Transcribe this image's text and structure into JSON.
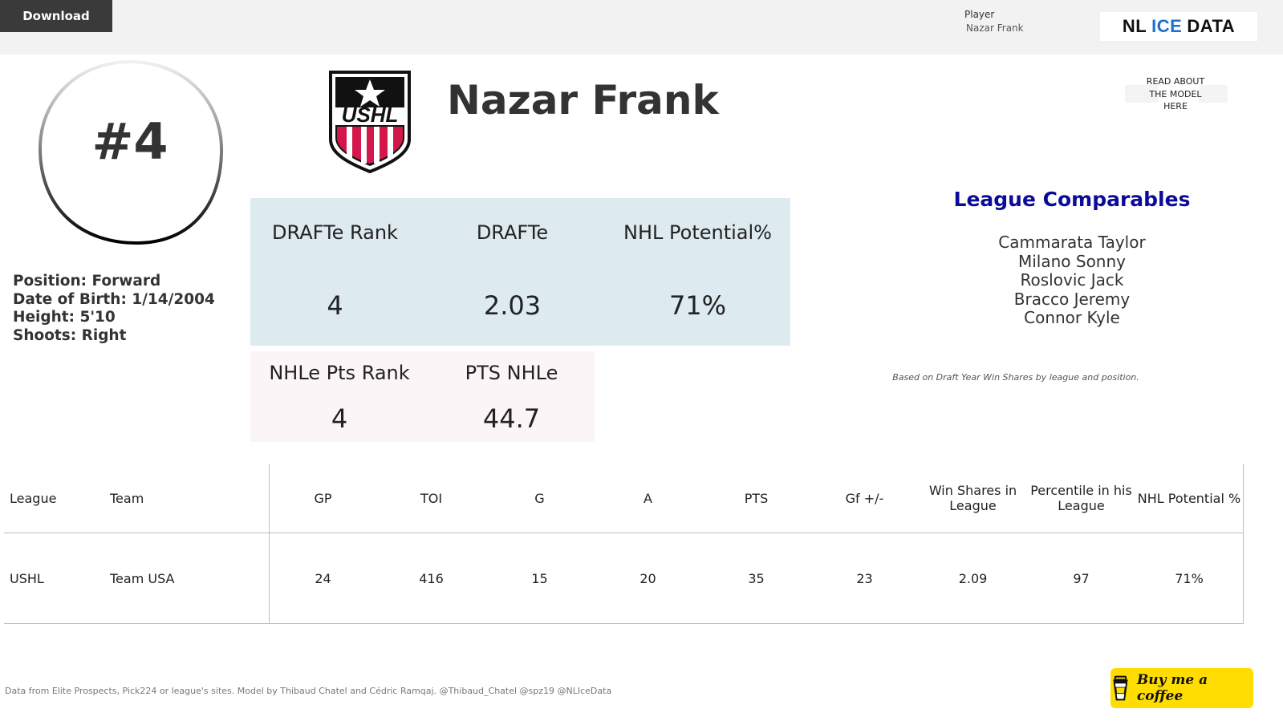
{
  "toolbar": {
    "download_label": "Download"
  },
  "filter": {
    "label": "Player",
    "value": "Nazar Frank"
  },
  "brand": {
    "part1": "NL",
    "part2": "ICE",
    "part3": "DATA"
  },
  "player": {
    "number": "#4",
    "name": "Nazar Frank",
    "league_logo_text": "USHL",
    "bio": {
      "position": "Position: Forward",
      "dob": "Date of Birth: 1/14/2004",
      "height": "Height: 5'10",
      "shoots": "Shoots: Right"
    }
  },
  "model_link": {
    "line1": "READ ABOUT",
    "line2": "THE MODEL",
    "line3": "HERE"
  },
  "kpis": {
    "drafte_rank": {
      "label": "DRAFTe Rank",
      "value": "4"
    },
    "drafte": {
      "label": "DRAFTe",
      "value": "2.03"
    },
    "nhl_potential": {
      "label": "NHL Potential%",
      "value": "71%"
    },
    "nhle_pts_rank": {
      "label": "NHLe Pts Rank",
      "value": "4"
    },
    "pts_nhle": {
      "label": "PTS NHLe",
      "value": "44.7"
    }
  },
  "comparables": {
    "title": "League Comparables",
    "names": [
      "Cammarata Taylor",
      "Milano Sonny",
      "Roslovic Jack",
      "Bracco Jeremy",
      "Connor Kyle"
    ],
    "note": "Based on Draft Year Win Shares by league and position."
  },
  "stats_table": {
    "headers": {
      "league": "League",
      "team": "Team",
      "gp": "GP",
      "toi": "TOI",
      "g": "G",
      "a": "A",
      "pts": "PTS",
      "gf": "Gf +/-",
      "ws1": "Win Shares in",
      "ws2": "League",
      "pct1": "Percentile in his",
      "pct2": "League",
      "nhlp": "NHL Potential %"
    },
    "row": {
      "league": "USHL",
      "team": "Team USA",
      "gp": "24",
      "toi": "416",
      "g": "15",
      "a": "20",
      "pts": "35",
      "gf": "23",
      "ws": "2.09",
      "pct": "97",
      "nhlp": "71%"
    }
  },
  "footer": {
    "credits": "Data from Elite Prospects, Pick224 or league's sites. Model by Thibaud Chatel and Cédric Ramqaj. @Thibaud_Chatel @spz19 @NLIceData"
  },
  "support": {
    "label": "Buy me a coffee"
  },
  "colors": {
    "accent_title": "#0b0b99",
    "kpi_blue": "#ddeaf0",
    "kpi_pink": "#fbf5f8",
    "brand_ice": "#1f6fd1"
  }
}
